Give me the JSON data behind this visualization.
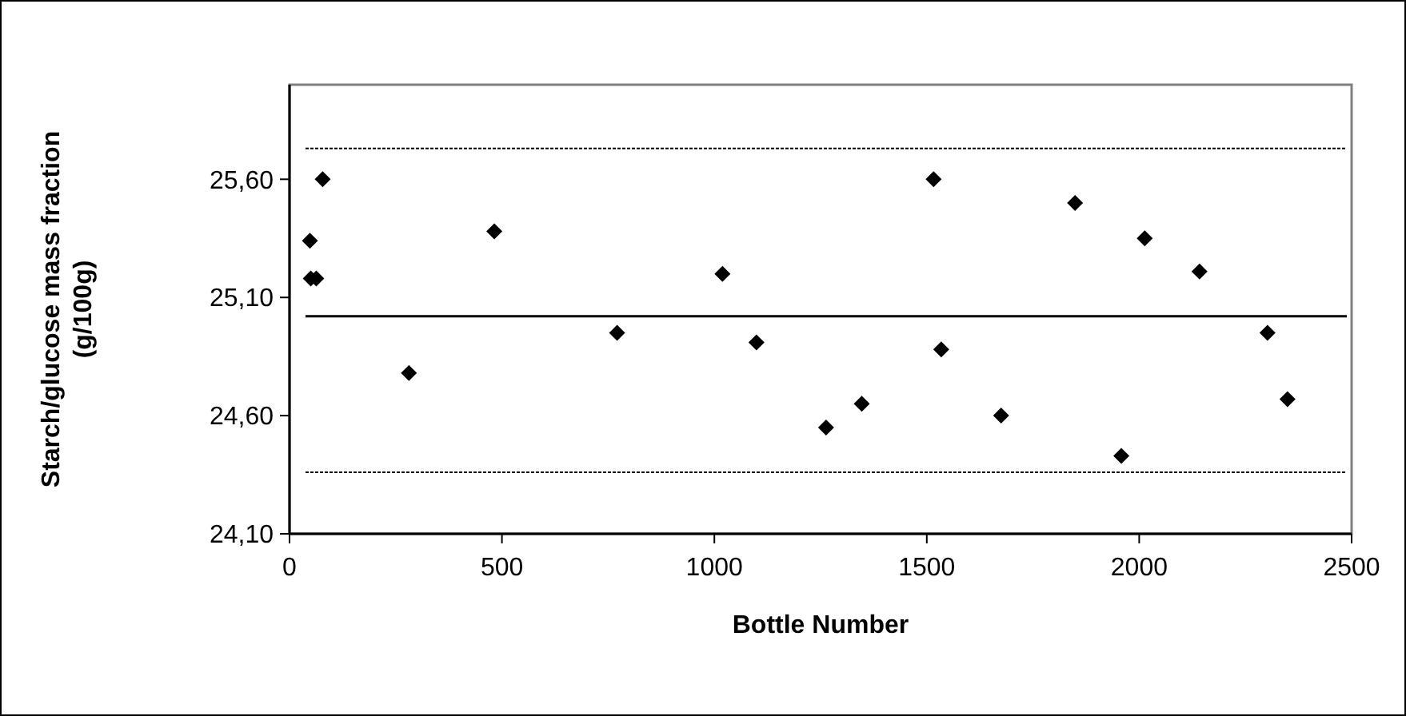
{
  "chart_data": {
    "type": "scatter",
    "xlabel": "Bottle Number",
    "ylabel": "Starch/glucose mass fraction (g/100g)",
    "x": [
      48,
      50,
      63,
      78,
      281,
      482,
      771,
      1019,
      1099,
      1263,
      1347,
      1516,
      1534,
      1675,
      1958,
      1849,
      2013,
      2142,
      2302,
      2349
    ],
    "values": [
      25.34,
      25.18,
      25.18,
      25.6,
      24.78,
      25.38,
      24.95,
      25.2,
      24.91,
      24.55,
      24.65,
      25.6,
      24.88,
      24.6,
      24.43,
      25.5,
      25.35,
      25.21,
      24.95,
      24.67
    ],
    "color": "#000000",
    "marker": "diamond",
    "grid": false,
    "xlim": [
      0,
      2500
    ],
    "xticks": [
      0,
      500,
      1000,
      1500,
      2000,
      2500
    ],
    "ylim": [
      24.1,
      26.0
    ],
    "yticks": [
      {
        "value": 24.1,
        "label": "24,10"
      },
      {
        "value": 24.6,
        "label": "24,60"
      },
      {
        "value": 25.1,
        "label": "25,10"
      },
      {
        "value": 25.6,
        "label": "25,60"
      }
    ],
    "ref_lines": [
      {
        "axis": "y",
        "value": 25.73,
        "color": "#000000",
        "line_style": "dotted"
      },
      {
        "axis": "y",
        "value": 25.02,
        "color": "#000000",
        "line_style": "solid"
      },
      {
        "axis": "y",
        "value": 24.36,
        "color": "#000000",
        "line_style": "dotted"
      }
    ]
  }
}
